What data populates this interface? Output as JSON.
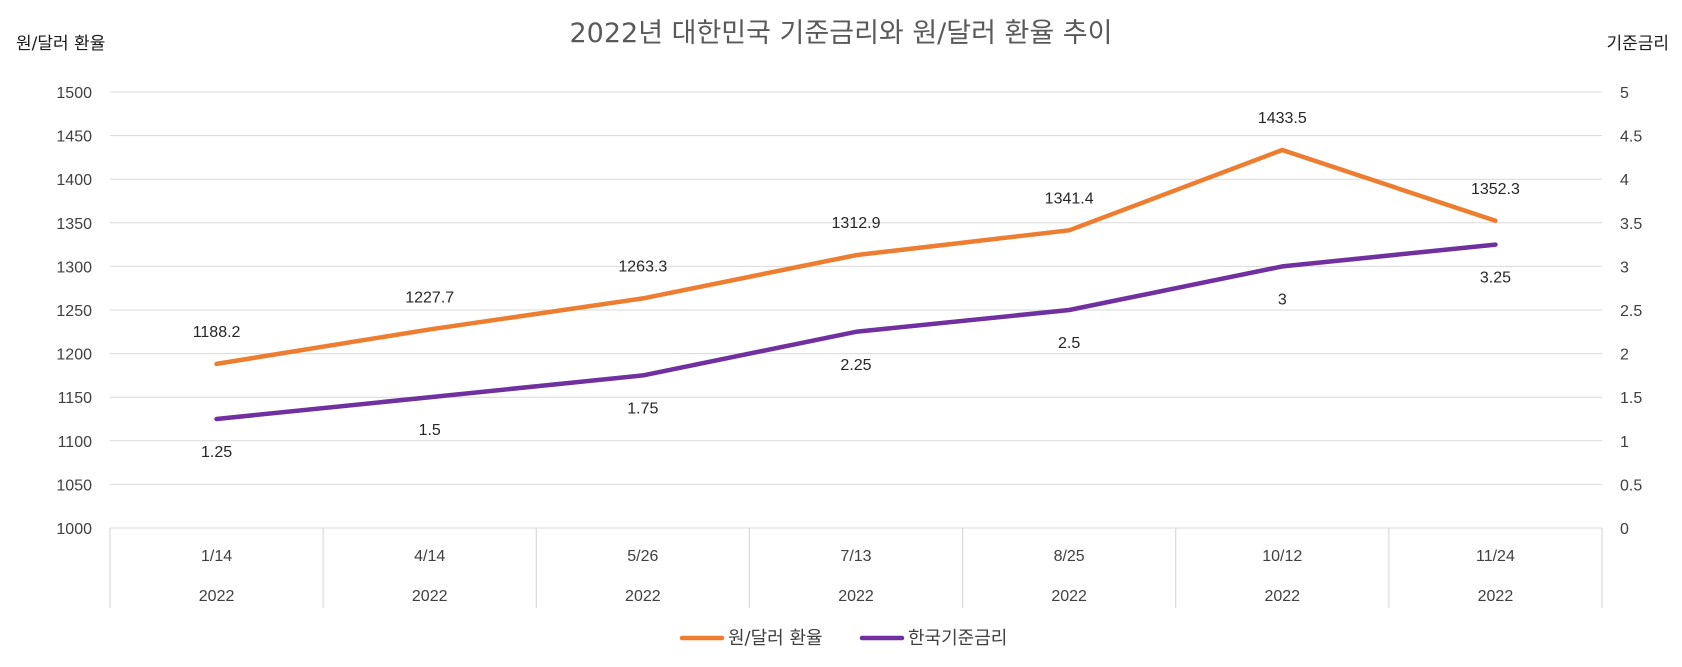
{
  "chart_data": {
    "type": "line",
    "title": "2022년 대한민국 기준금리와 원/달러 환율 추이",
    "y_left_label": "원/달러 환율",
    "y_right_label": "기준금리",
    "categories": [
      "1/14",
      "4/14",
      "5/26",
      "7/13",
      "8/25",
      "10/12",
      "11/24"
    ],
    "category_year": "2022",
    "y_left": {
      "min": 1000,
      "max": 1500,
      "step": 50,
      "ticks": [
        "1000",
        "1050",
        "1100",
        "1150",
        "1200",
        "1250",
        "1300",
        "1350",
        "1400",
        "1450",
        "1500"
      ]
    },
    "y_right": {
      "min": 0,
      "max": 5,
      "step": 0.5,
      "ticks": [
        "0",
        "0.5",
        "1",
        "1.5",
        "2",
        "2.5",
        "3",
        "3.5",
        "4",
        "4.5",
        "5"
      ]
    },
    "grid": true,
    "legend_position": "bottom",
    "series": [
      {
        "name": "원/달러 환율",
        "axis": "left",
        "color": "#ED7D31",
        "values": [
          1188.2,
          1227.7,
          1263.3,
          1312.9,
          1341.4,
          1433.5,
          1352.3
        ],
        "labels": [
          "1188.2",
          "1227.7",
          "1263.3",
          "1312.9",
          "1341.4",
          "1433.5",
          "1352.3"
        ]
      },
      {
        "name": "한국기준금리",
        "axis": "right",
        "color": "#7030A0",
        "values": [
          1.25,
          1.5,
          1.75,
          2.25,
          2.5,
          3,
          3.25
        ],
        "labels": [
          "1.25",
          "1.5",
          "1.75",
          "2.25",
          "2.5",
          "3",
          "3.25"
        ]
      }
    ]
  }
}
